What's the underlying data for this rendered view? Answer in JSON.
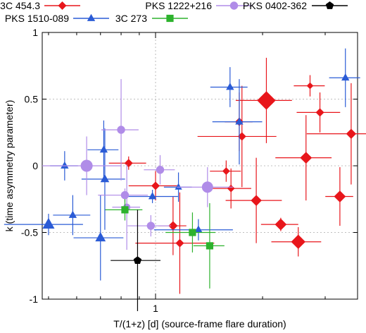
{
  "chart_data": {
    "type": "scatter",
    "title": "",
    "xlabel": "T/(1+z) [d] (source-frame flare duration)",
    "ylabel": "k (time asymmetry parameter)",
    "xscale": "log",
    "xlim": [
      0.48,
      3.7
    ],
    "ylim": [
      -1,
      1
    ],
    "x_ticks": [
      {
        "value": 1,
        "label": "1"
      }
    ],
    "y_ticks": [
      {
        "value": -1,
        "label": "-1"
      },
      {
        "value": -0.5,
        "label": "-0.5"
      },
      {
        "value": 0,
        "label": "0"
      },
      {
        "value": 0.5,
        "label": "0.5"
      },
      {
        "value": 1,
        "label": "1"
      }
    ],
    "grid": true,
    "legend_position": "top",
    "series": [
      {
        "name": "3C 454.3",
        "color": "#e8161b",
        "marker": "diamond",
        "points": [
          {
            "x": 2.05,
            "y": 0.49,
            "size": 2.2
          },
          {
            "x": 1.72,
            "y": 0.33,
            "size": 1.0
          },
          {
            "x": 1.75,
            "y": 0.22,
            "size": 1.0
          },
          {
            "x": 0.84,
            "y": 0.02,
            "size": 1.0
          },
          {
            "x": 1.0,
            "y": -0.15,
            "size": 1.0
          },
          {
            "x": 1.58,
            "y": -0.04,
            "size": 0.9
          },
          {
            "x": 1.63,
            "y": -0.17,
            "size": 0.9
          },
          {
            "x": 1.92,
            "y": -0.26,
            "size": 1.3
          },
          {
            "x": 1.12,
            "y": -0.45,
            "size": 1.1
          },
          {
            "x": 1.17,
            "y": -0.58,
            "size": 1.0
          },
          {
            "x": 2.25,
            "y": -0.44,
            "size": 1.4
          },
          {
            "x": 2.52,
            "y": -0.57,
            "size": 1.7
          },
          {
            "x": 2.72,
            "y": 0.6,
            "size": 0.8
          },
          {
            "x": 2.9,
            "y": 0.4,
            "size": 1.0
          },
          {
            "x": 2.65,
            "y": 0.06,
            "size": 1.4
          },
          {
            "x": 3.3,
            "y": -0.23,
            "size": 1.4
          },
          {
            "x": 3.55,
            "y": 0.24,
            "size": 1.2
          }
        ]
      },
      {
        "name": "PKS 1510-089",
        "color": "#2a5bd6",
        "marker": "triangle",
        "points": [
          {
            "x": 0.555,
            "y": 0.0,
            "size": 1.0
          },
          {
            "x": 0.5,
            "y": -0.44,
            "size": 1.5
          },
          {
            "x": 0.585,
            "y": -0.37,
            "size": 1.0
          },
          {
            "x": 0.7,
            "y": -0.54,
            "size": 1.3
          },
          {
            "x": 0.715,
            "y": 0.12,
            "size": 1.0
          },
          {
            "x": 0.72,
            "y": -0.1,
            "size": 1.1
          },
          {
            "x": 0.98,
            "y": -0.23,
            "size": 1.0
          },
          {
            "x": 1.16,
            "y": -0.16,
            "size": 0.9
          },
          {
            "x": 1.32,
            "y": -0.48,
            "size": 1.0
          },
          {
            "x": 1.62,
            "y": 0.59,
            "size": 1.0
          },
          {
            "x": 1.72,
            "y": 0.33,
            "size": 1.0
          },
          {
            "x": 3.42,
            "y": 0.66,
            "size": 1.0
          }
        ]
      },
      {
        "name": "PKS 1222+216",
        "color": "#b08ce8",
        "marker": "circle",
        "points": [
          {
            "x": 0.64,
            "y": 0.0,
            "size": 1.5
          },
          {
            "x": 0.8,
            "y": 0.27,
            "size": 1.0
          },
          {
            "x": 0.82,
            "y": -0.22,
            "size": 1.0
          },
          {
            "x": 1.03,
            "y": -0.03,
            "size": 1.0
          },
          {
            "x": 0.97,
            "y": -0.45,
            "size": 1.0
          },
          {
            "x": 1.4,
            "y": -0.16,
            "size": 1.4
          },
          {
            "x": 0.83,
            "y": -0.31,
            "size": 0.9
          }
        ]
      },
      {
        "name": "3C 273",
        "color": "#2db22d",
        "marker": "square",
        "points": [
          {
            "x": 0.82,
            "y": -0.33,
            "size": 1.0
          },
          {
            "x": 1.27,
            "y": -0.5,
            "size": 1.0
          },
          {
            "x": 1.42,
            "y": -0.6,
            "size": 1.0
          }
        ]
      },
      {
        "name": "PKS 0402-362",
        "color": "#000000",
        "marker": "pentagon",
        "points": [
          {
            "x": 0.89,
            "y": -0.71,
            "size": 1.0
          }
        ]
      }
    ]
  }
}
